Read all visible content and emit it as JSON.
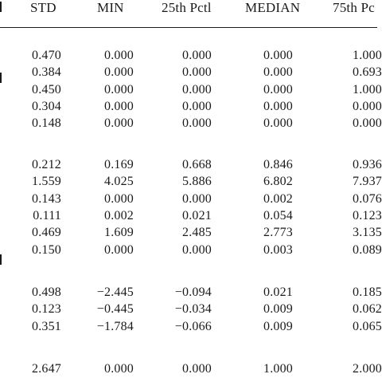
{
  "table": {
    "header_truncated_left": "I",
    "headers": [
      "STD",
      "MIN",
      "25th Pctl",
      "MEDIAN",
      "75th Pc"
    ],
    "groups": [
      {
        "rows": [
          [
            "0.470",
            "0.000",
            "0.000",
            "0.000",
            "1.000"
          ],
          [
            "0.384",
            "0.000",
            "0.000",
            "0.000",
            "0.693"
          ],
          [
            "0.450",
            "0.000",
            "0.000",
            "0.000",
            "1.000"
          ],
          [
            "0.304",
            "0.000",
            "0.000",
            "0.000",
            "0.000"
          ],
          [
            "0.148",
            "0.000",
            "0.000",
            "0.000",
            "0.000"
          ]
        ]
      },
      {
        "rows": [
          [
            "0.212",
            "0.169",
            "0.668",
            "0.846",
            "0.936"
          ],
          [
            "1.559",
            "4.025",
            "5.886",
            "6.802",
            "7.937"
          ],
          [
            "0.143",
            "0.000",
            "0.000",
            "0.002",
            "0.076"
          ],
          [
            "0.111",
            "0.002",
            "0.021",
            "0.054",
            "0.123"
          ],
          [
            "0.469",
            "1.609",
            "2.485",
            "2.773",
            "3.135"
          ],
          [
            "0.150",
            "0.000",
            "0.000",
            "0.003",
            "0.089"
          ]
        ]
      },
      {
        "rows": [
          [
            "0.498",
            "−2.445",
            "−0.094",
            "0.021",
            "0.185"
          ],
          [
            "0.123",
            "−0.445",
            "−0.034",
            "0.009",
            "0.062"
          ],
          [
            "0.351",
            "−1.784",
            "−0.066",
            "0.009",
            "0.065"
          ]
        ]
      },
      {
        "rows": [
          [
            "2.647",
            "0.000",
            "0.000",
            "1.000",
            "2.000"
          ]
        ]
      }
    ]
  }
}
